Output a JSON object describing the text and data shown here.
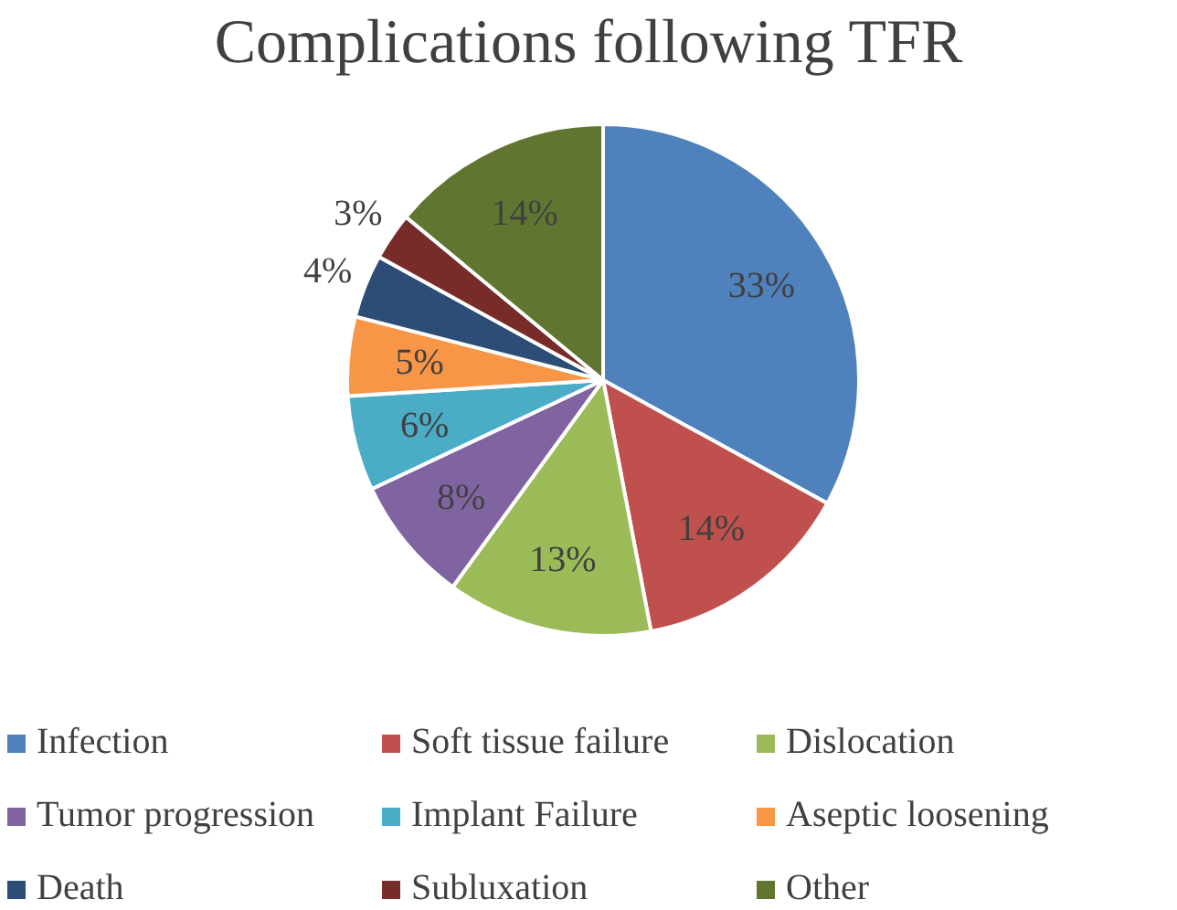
{
  "chart_data": {
    "type": "pie",
    "title": "Complications following TFR",
    "categories": [
      "Infection",
      "Soft tissue failure",
      "Dislocation",
      "Tumor progression",
      "Implant Failure",
      "Aseptic loosening",
      "Death",
      "Subluxation",
      "Other"
    ],
    "values": [
      33,
      14,
      13,
      8,
      6,
      5,
      4,
      3,
      14
    ],
    "value_labels": [
      "33%",
      "14%",
      "13%",
      "8%",
      "6%",
      "5%",
      "4%",
      "3%",
      "14%"
    ],
    "colors": [
      "#4f81bd",
      "#c0504d",
      "#9bbb59",
      "#8064a2",
      "#4bacc6",
      "#f79646",
      "#2c4d75",
      "#772c2a",
      "#5f7530"
    ],
    "legend": "bottom"
  }
}
